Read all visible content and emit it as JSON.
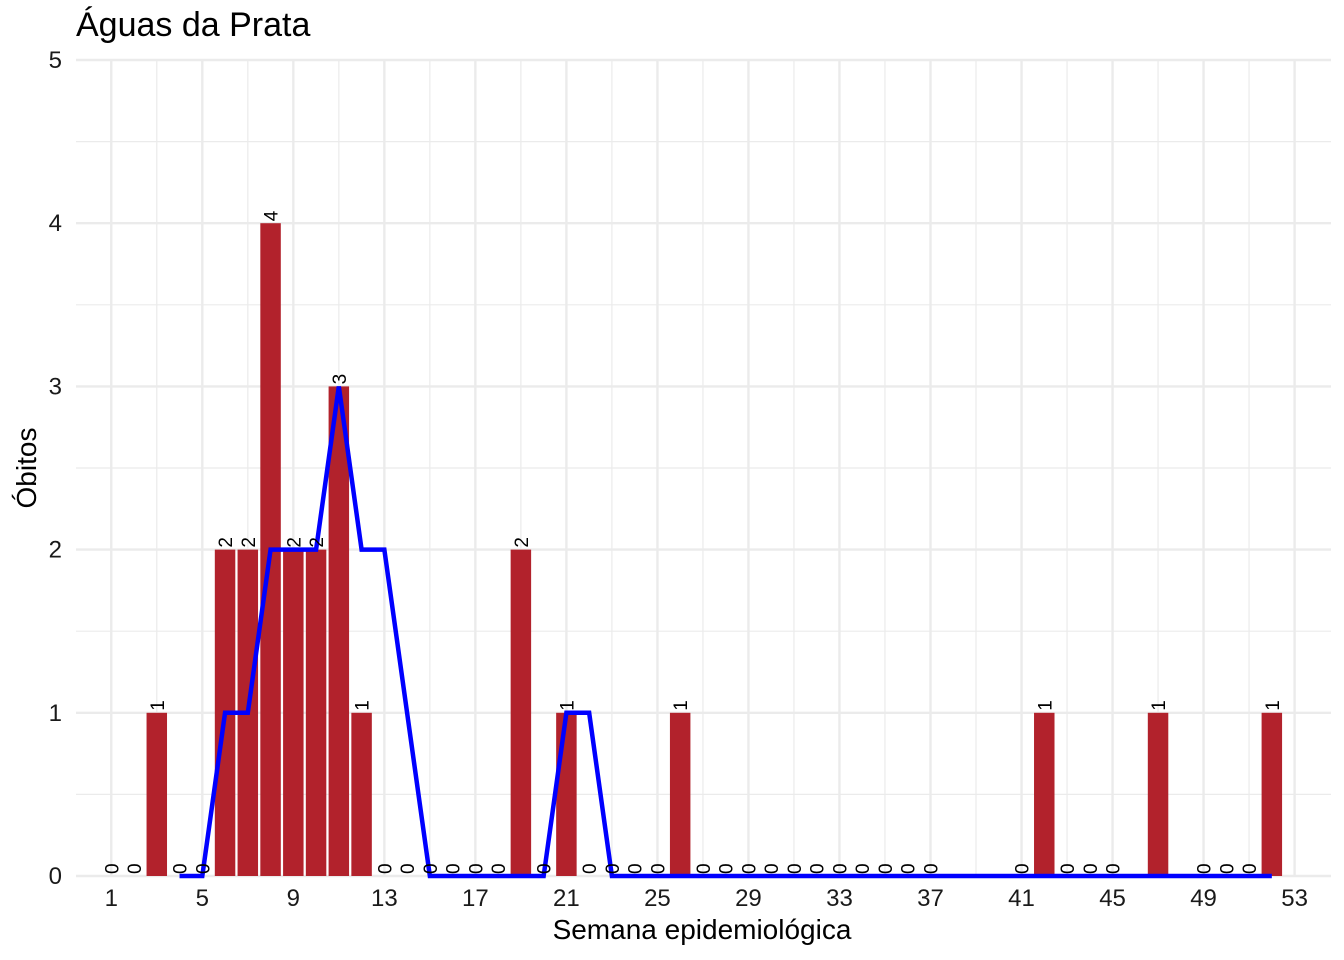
{
  "chart_data": {
    "type": "bar",
    "title": "Águas da Prata",
    "xlabel": "Semana epidemiológica",
    "ylabel": "Óbitos",
    "xlim": [
      -0.55,
      54.6
    ],
    "ylim": [
      0,
      5
    ],
    "x_ticks": [
      1,
      5,
      9,
      13,
      17,
      21,
      25,
      29,
      33,
      37,
      41,
      45,
      49,
      53
    ],
    "y_ticks": [
      0,
      1,
      2,
      3,
      4,
      5
    ],
    "grid": true,
    "legend": "none",
    "colors": {
      "bar": "#B2222C",
      "line": "#0000FF",
      "grid": "#EBEBEB"
    },
    "series": [
      {
        "kind": "bar",
        "x": [
          1,
          2,
          3,
          4,
          5,
          6,
          7,
          8,
          9,
          10,
          11,
          12,
          13,
          14,
          15,
          16,
          17,
          18,
          19,
          20,
          21,
          22,
          23,
          24,
          25,
          26,
          27,
          28,
          29,
          30,
          31,
          32,
          33,
          34,
          35,
          36,
          37,
          41,
          42,
          43,
          44,
          45,
          47,
          49,
          50,
          51,
          52
        ],
        "values": [
          0,
          0,
          1,
          0,
          0,
          2,
          2,
          4,
          2,
          2,
          3,
          1,
          0,
          0,
          0,
          0,
          0,
          0,
          2,
          0,
          1,
          0,
          0,
          0,
          0,
          1,
          0,
          0,
          0,
          0,
          0,
          0,
          0,
          0,
          0,
          0,
          0,
          0,
          1,
          0,
          0,
          0,
          1,
          0,
          0,
          0,
          1
        ]
      },
      {
        "kind": "line",
        "x": [
          4,
          5,
          6,
          7,
          8,
          9,
          10,
          11,
          12,
          13,
          15,
          20,
          21,
          22,
          23,
          52
        ],
        "values": [
          0,
          0,
          1,
          1,
          2,
          2,
          2,
          3,
          2,
          2,
          0,
          0,
          1,
          1,
          0,
          0
        ]
      }
    ]
  }
}
